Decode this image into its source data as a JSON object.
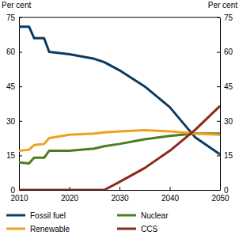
{
  "chart_data": {
    "type": "line",
    "ylabel": "Per cent",
    "y2label": "Per cent",
    "x": [
      2010,
      2012,
      2013,
      2015,
      2016,
      2020,
      2025,
      2027,
      2030,
      2035,
      2040,
      2045,
      2050
    ],
    "xlim": [
      2010,
      2050
    ],
    "xticks": [
      2010,
      2020,
      2030,
      2040,
      2050
    ],
    "ylim": [
      0,
      75
    ],
    "yticks": [
      0,
      15,
      30,
      45,
      60,
      75
    ],
    "y2lim": [
      0,
      75
    ],
    "y2ticks": [
      0,
      15,
      30,
      45,
      60,
      75
    ],
    "grid": false,
    "legend": "bottom",
    "series": [
      {
        "name": "Fossil fuel",
        "color": "#0b3b60",
        "values": [
          71,
          71,
          66,
          66,
          60,
          59,
          57,
          55.5,
          52,
          45,
          36,
          23,
          15.5
        ]
      },
      {
        "name": "Nuclear",
        "color": "#4b7d1f",
        "values": [
          12,
          11.5,
          14,
          14,
          17,
          17,
          18,
          19,
          20,
          22,
          23.5,
          24.5,
          24.5
        ]
      },
      {
        "name": "Renewable",
        "color": "#f0a020",
        "values": [
          17,
          17.5,
          19.5,
          20,
          22.5,
          24,
          24.5,
          25,
          25.5,
          26,
          25.5,
          24.5,
          24
        ]
      },
      {
        "name": "CCS",
        "color": "#8c2a18",
        "values": [
          0,
          0,
          0,
          0,
          0,
          0,
          0,
          0,
          3.5,
          9.5,
          17,
          26,
          36.5
        ]
      }
    ]
  }
}
